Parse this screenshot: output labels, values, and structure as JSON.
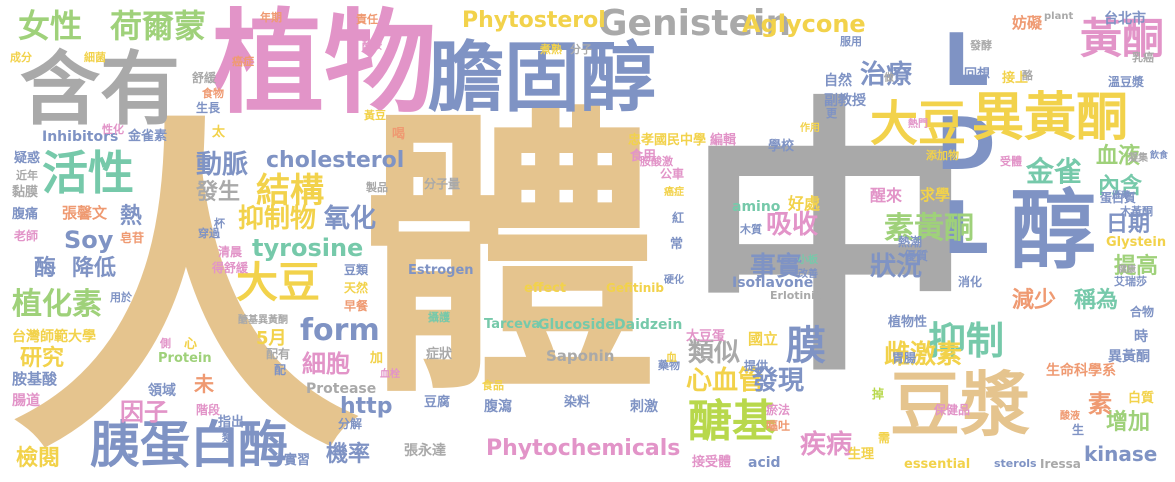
{
  "words": [
    {
      "t": "人",
      "c": "c1"
    },
    {
      "t": "體",
      "c": "c1"
    },
    {
      "t": "中",
      "c": "c2"
    },
    {
      "t": "植物",
      "c": "c3"
    },
    {
      "t": "膽固醇",
      "c": "c4"
    },
    {
      "t": "含有",
      "c": "c2"
    },
    {
      "t": "LDL",
      "c": "c4"
    },
    {
      "t": "醇",
      "c": "c4"
    },
    {
      "t": "豆漿",
      "c": "c1"
    },
    {
      "t": "Genistein",
      "c": "c2"
    },
    {
      "t": "大豆",
      "c": "c5"
    },
    {
      "t": "異黃酮",
      "c": "c5"
    },
    {
      "t": "黃酮",
      "c": "c3"
    },
    {
      "t": "胰蛋白",
      "c": "c4"
    },
    {
      "t": "酶",
      "c": "c4"
    },
    {
      "t": "醣基",
      "c": "c9"
    },
    {
      "t": "活性",
      "c": "c7"
    },
    {
      "t": "女性",
      "c": "c6"
    },
    {
      "t": "荷爾蒙",
      "c": "c6"
    },
    {
      "t": "Aglycone",
      "c": "c5"
    },
    {
      "t": "Phytosterol",
      "c": "c5"
    },
    {
      "t": "治療",
      "c": "c4"
    },
    {
      "t": "結構",
      "c": "c5"
    },
    {
      "t": "抑制物",
      "c": "c5"
    },
    {
      "t": "氧化",
      "c": "c4"
    },
    {
      "t": "cholesterol",
      "c": "c4"
    },
    {
      "t": "tyrosine",
      "c": "c7"
    },
    {
      "t": "form",
      "c": "c4"
    },
    {
      "t": "大豆",
      "c": "c5"
    },
    {
      "t": "吸收",
      "c": "c3"
    },
    {
      "t": "事實",
      "c": "c4"
    },
    {
      "t": "狀況",
      "c": "c4"
    },
    {
      "t": "素黃酮",
      "c": "c6"
    },
    {
      "t": "抑制",
      "c": "c7"
    },
    {
      "t": "膜",
      "c": "c4"
    },
    {
      "t": "金雀",
      "c": "c7"
    },
    {
      "t": "內含",
      "c": "c7"
    },
    {
      "t": "血液",
      "c": "c6"
    },
    {
      "t": "日期",
      "c": "c4"
    },
    {
      "t": "提高",
      "c": "c6"
    },
    {
      "t": "減少",
      "c": "c8"
    },
    {
      "t": "稱為",
      "c": "c7"
    },
    {
      "t": "增加",
      "c": "c6"
    },
    {
      "t": "kinase",
      "c": "c4"
    },
    {
      "t": "素",
      "c": "c8"
    },
    {
      "t": "雌激素",
      "c": "c5"
    },
    {
      "t": "心血管",
      "c": "c5"
    },
    {
      "t": "發現",
      "c": "c4"
    },
    {
      "t": "類似",
      "c": "c2"
    },
    {
      "t": "Phytochemicals",
      "c": "c3"
    },
    {
      "t": "機率",
      "c": "c4"
    },
    {
      "t": "細胞",
      "c": "c3"
    },
    {
      "t": "5月",
      "c": "c5"
    },
    {
      "t": "植化素",
      "c": "c6"
    },
    {
      "t": "研究",
      "c": "c5"
    },
    {
      "t": "因子",
      "c": "c3"
    },
    {
      "t": "檢閱",
      "c": "c5"
    },
    {
      "t": "Soy",
      "c": "c4"
    },
    {
      "t": "降低",
      "c": "c4"
    },
    {
      "t": "酶",
      "c": "c4"
    },
    {
      "t": "動脈",
      "c": "c4"
    },
    {
      "t": "發生",
      "c": "c2"
    },
    {
      "t": "熱",
      "c": "c4"
    },
    {
      "t": "疾病",
      "c": "c3"
    },
    {
      "t": "http",
      "c": "c4"
    },
    {
      "t": "Saponin",
      "c": "c2"
    },
    {
      "t": "Isoflavone",
      "c": "c4"
    },
    {
      "t": "Glucoside",
      "c": "c7"
    },
    {
      "t": "Daidzein",
      "c": "c7"
    },
    {
      "t": "Tarceva",
      "c": "c7"
    },
    {
      "t": "Estrogen",
      "c": "c4"
    },
    {
      "t": "effect",
      "c": "c5"
    },
    {
      "t": "Gefitinib",
      "c": "c5"
    },
    {
      "t": "amino",
      "c": "c7"
    },
    {
      "t": "好處",
      "c": "c5"
    },
    {
      "t": "醒來",
      "c": "c3"
    },
    {
      "t": "求學",
      "c": "c5"
    },
    {
      "t": "生命科學系",
      "c": "c8"
    },
    {
      "t": "異黃酮",
      "c": "c4"
    },
    {
      "t": "植物性",
      "c": "c4"
    },
    {
      "t": "國立",
      "c": "c5"
    },
    {
      "t": "大豆蛋",
      "c": "c3"
    },
    {
      "t": "台灣師範大學",
      "c": "c5"
    },
    {
      "t": "胺基酸",
      "c": "c4"
    },
    {
      "t": "腸道",
      "c": "c3"
    },
    {
      "t": "張馨文",
      "c": "c8"
    },
    {
      "t": "Protein",
      "c": "c6"
    },
    {
      "t": "Protease",
      "c": "c2"
    },
    {
      "t": "張永達",
      "c": "c2"
    },
    {
      "t": "acid",
      "c": "c4"
    },
    {
      "t": "essential",
      "c": "c5"
    },
    {
      "t": "sterols",
      "c": "c4"
    },
    {
      "t": "Iressa",
      "c": "c2"
    },
    {
      "t": "Inhibitors",
      "c": "c4"
    },
    {
      "t": "金雀素",
      "c": "c4"
    },
    {
      "t": "分子量",
      "c": "c2"
    },
    {
      "t": "台北市",
      "c": "c4"
    },
    {
      "t": "妨礙",
      "c": "c8"
    },
    {
      "t": "Glystein",
      "c": "c5"
    },
    {
      "t": "Erlotinib",
      "c": "c2"
    },
    {
      "t": "忠孝國民中學",
      "c": "c5"
    },
    {
      "t": "編輯",
      "c": "c3"
    },
    {
      "t": "學校",
      "c": "c4"
    },
    {
      "t": "副教授",
      "c": "c4"
    },
    {
      "t": "自然",
      "c": "c4"
    },
    {
      "t": "回想",
      "c": "c4"
    },
    {
      "t": "接上",
      "c": "c5"
    },
    {
      "t": "溫豆漿",
      "c": "c4"
    },
    {
      "t": "蛋白質",
      "c": "c4"
    },
    {
      "t": "木黃酮",
      "c": "c4"
    },
    {
      "t": "白質",
      "c": "c5"
    },
    {
      "t": "保健品",
      "c": "c3"
    },
    {
      "t": "瘀法",
      "c": "c3"
    },
    {
      "t": "嘔吐",
      "c": "c8"
    },
    {
      "t": "接受體",
      "c": "c3"
    },
    {
      "t": "生理",
      "c": "c5"
    },
    {
      "t": "刺激",
      "c": "c4"
    },
    {
      "t": "腹瀉",
      "c": "c4"
    },
    {
      "t": "豆腐",
      "c": "c4"
    },
    {
      "t": "染料",
      "c": "c4"
    },
    {
      "t": "症狀",
      "c": "c2"
    },
    {
      "t": "實習",
      "c": "c4"
    },
    {
      "t": "指出",
      "c": "c4"
    },
    {
      "t": "領域",
      "c": "c4"
    },
    {
      "t": "階段",
      "c": "c3"
    },
    {
      "t": "未",
      "c": "c8"
    },
    {
      "t": "年期",
      "c": "c8"
    },
    {
      "t": "責任",
      "c": "c8"
    },
    {
      "t": "分子",
      "c": "c2"
    },
    {
      "t": "煮熟",
      "c": "c5"
    },
    {
      "t": "服用",
      "c": "c4"
    },
    {
      "t": "plant",
      "c": "c2"
    },
    {
      "t": "發酵",
      "c": "c2"
    },
    {
      "t": "乳癌",
      "c": "c2"
    },
    {
      "t": "成分",
      "c": "c5"
    },
    {
      "t": "細菌",
      "c": "c5"
    },
    {
      "t": "癌症",
      "c": "c8"
    },
    {
      "t": "舒緩",
      "c": "c2"
    },
    {
      "t": "食物",
      "c": "c8"
    },
    {
      "t": "生長",
      "c": "c4"
    },
    {
      "t": "性化",
      "c": "c3"
    },
    {
      "t": "疑惑",
      "c": "c4"
    },
    {
      "t": "近年",
      "c": "c2"
    },
    {
      "t": "黏膜",
      "c": "c2"
    },
    {
      "t": "腹痛",
      "c": "c4"
    },
    {
      "t": "老師",
      "c": "c3"
    },
    {
      "t": "皂苷",
      "c": "c8"
    },
    {
      "t": "穿過",
      "c": "c4"
    },
    {
      "t": "清晨",
      "c": "c3"
    },
    {
      "t": "得舒緩",
      "c": "c3"
    },
    {
      "t": "豆類",
      "c": "c4"
    },
    {
      "t": "天然",
      "c": "c5"
    },
    {
      "t": "早餐",
      "c": "c8"
    },
    {
      "t": "醣基異黃酮",
      "c": "c2"
    },
    {
      "t": "配有",
      "c": "c2"
    },
    {
      "t": "用於",
      "c": "c4"
    },
    {
      "t": "心",
      "c": "c5"
    },
    {
      "t": "食用",
      "c": "c3"
    },
    {
      "t": "胺酸激",
      "c": "c3"
    },
    {
      "t": "公車",
      "c": "c3"
    },
    {
      "t": "作用",
      "c": "c5"
    },
    {
      "t": "製品",
      "c": "c2"
    },
    {
      "t": "提供",
      "c": "c4"
    },
    {
      "t": "消化",
      "c": "c4"
    },
    {
      "t": "優質",
      "c": "c4"
    },
    {
      "t": "熱潮",
      "c": "c4"
    },
    {
      "t": "胃腸",
      "c": "c4"
    },
    {
      "t": "木質",
      "c": "c4"
    },
    {
      "t": "掉",
      "c": "c9"
    },
    {
      "t": "需",
      "c": "c5"
    },
    {
      "t": "生",
      "c": "c4"
    },
    {
      "t": "時",
      "c": "c4"
    },
    {
      "t": "合物",
      "c": "c4"
    },
    {
      "t": "艾瑞莎",
      "c": "c4"
    },
    {
      "t": "受體",
      "c": "c3"
    },
    {
      "t": "凝集",
      "c": "c2"
    },
    {
      "t": "添加物",
      "c": "c5"
    },
    {
      "t": "藥物",
      "c": "c4"
    },
    {
      "t": "太",
      "c": "c5"
    },
    {
      "t": "喝",
      "c": "c8"
    },
    {
      "t": "黃豆",
      "c": "c5"
    },
    {
      "t": "更",
      "c": "c4"
    },
    {
      "t": "做",
      "c": "c2"
    },
    {
      "t": "酪胺",
      "c": "c3"
    },
    {
      "t": "熱門",
      "c": "c3"
    },
    {
      "t": "酪",
      "c": "c2"
    },
    {
      "t": "紅",
      "c": "c4"
    },
    {
      "t": "常",
      "c": "c4"
    },
    {
      "t": "癌症",
      "c": "c5"
    },
    {
      "t": "改善",
      "c": "c4"
    },
    {
      "t": "小板",
      "c": "c7"
    },
    {
      "t": "硬化",
      "c": "c4"
    },
    {
      "t": "杯",
      "c": "c4"
    },
    {
      "t": "配",
      "c": "c4"
    },
    {
      "t": "加",
      "c": "c5"
    },
    {
      "t": "側",
      "c": "c3"
    },
    {
      "t": "血",
      "c": "c5"
    },
    {
      "t": "食品",
      "c": "c5"
    },
    {
      "t": "分解",
      "c": "c4"
    },
    {
      "t": "攝護",
      "c": "c7"
    },
    {
      "t": "類",
      "c": "c4"
    },
    {
      "t": "血栓",
      "c": "c3"
    },
    {
      "t": "健康",
      "c": "c2"
    },
    {
      "t": "雁藥",
      "c": "c4"
    },
    {
      "t": "飲食",
      "c": "c4"
    },
    {
      "t": "酸液",
      "c": "c8"
    }
  ]
}
